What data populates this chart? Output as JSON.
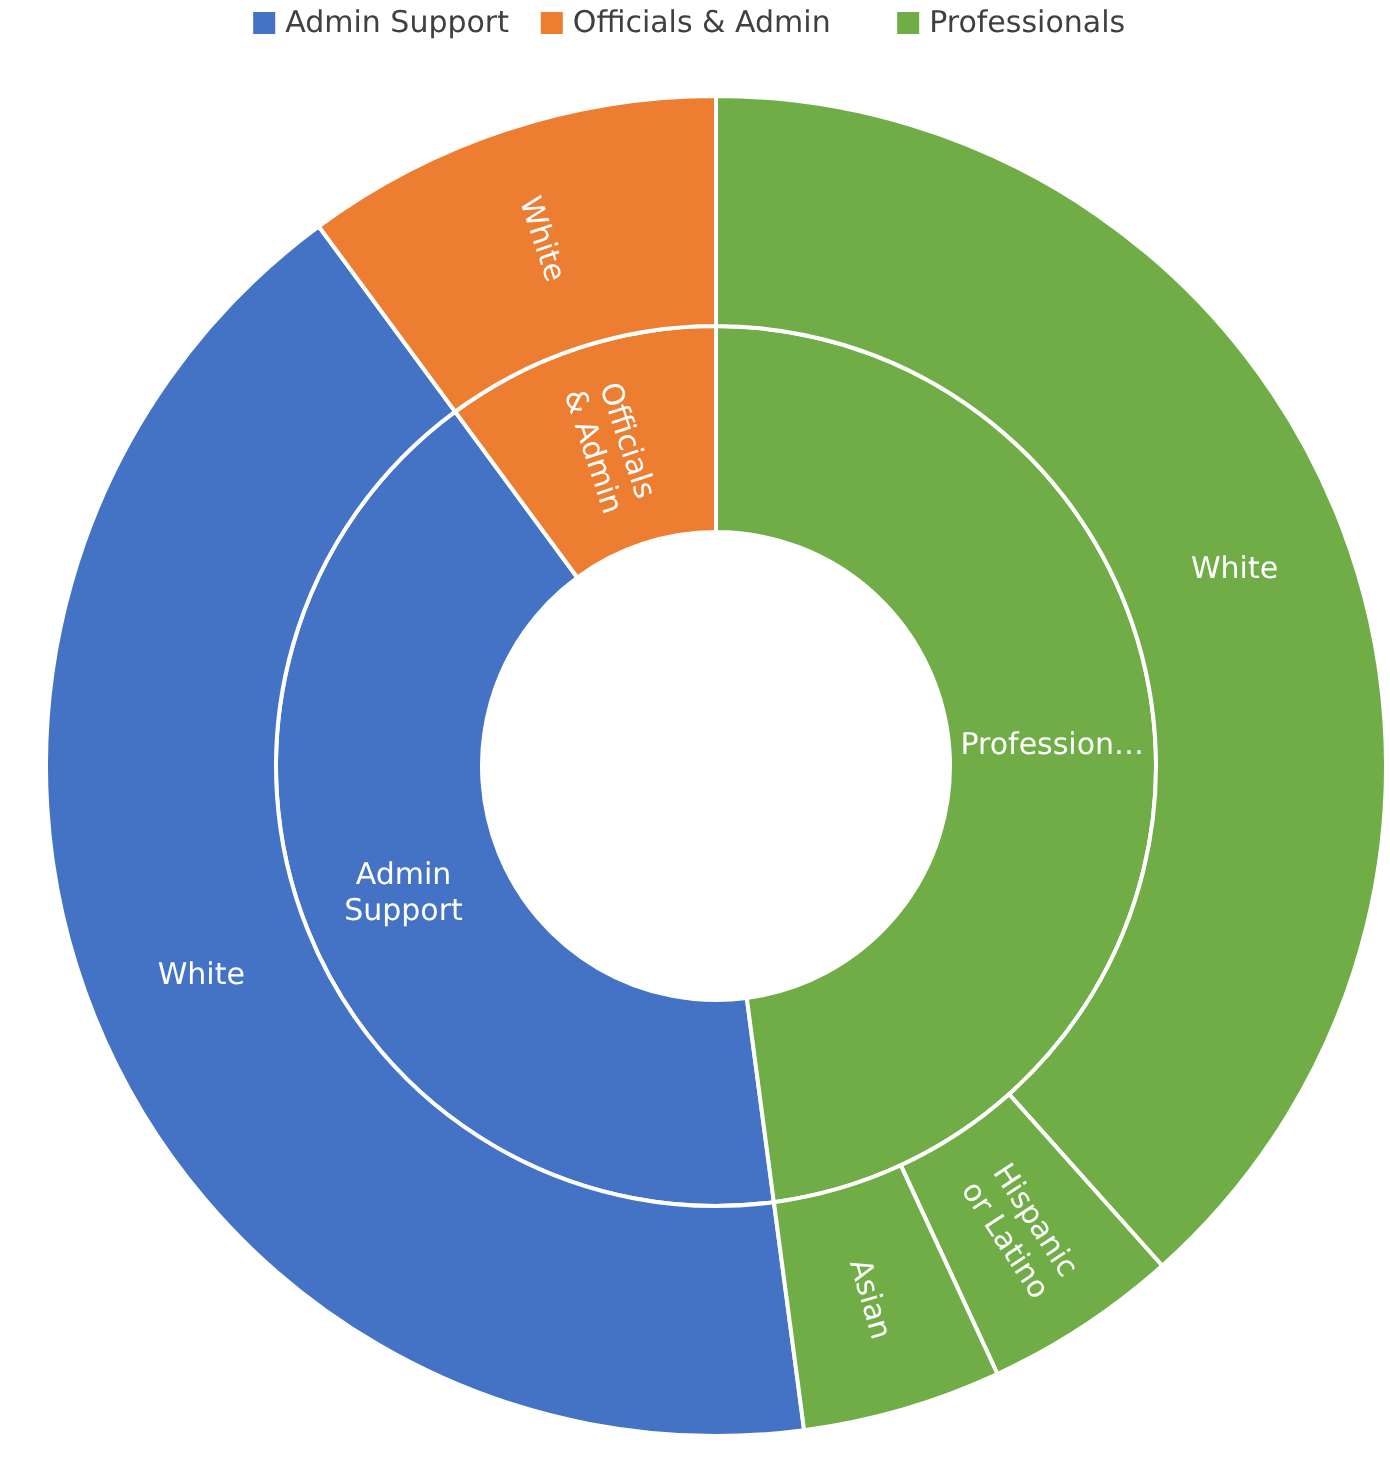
{
  "chart_data": [
    {
      "type": "donut",
      "legend": "top",
      "categories": [
        "Admin Support",
        "Officials & Admin",
        "Professionals"
      ],
      "colors": [
        "#4472c4",
        "#ed7d31",
        "#70ad47"
      ],
      "values": [
        42.0,
        10.1,
        47.9
      ],
      "value_labels": [
        "Admin Support",
        "Officials & Admin",
        "Profession…"
      ]
    },
    {
      "type": "donut",
      "categories": [
        "White",
        "White",
        "White",
        "Hispanic or Latino",
        "Asian"
      ],
      "values": [
        42.0,
        10.1,
        38.4,
        4.7,
        4.8
      ],
      "colors": [
        "#4472c4",
        "#ed7d31",
        "#70ad47",
        "#70ad47",
        "#70ad47"
      ]
    }
  ]
}
